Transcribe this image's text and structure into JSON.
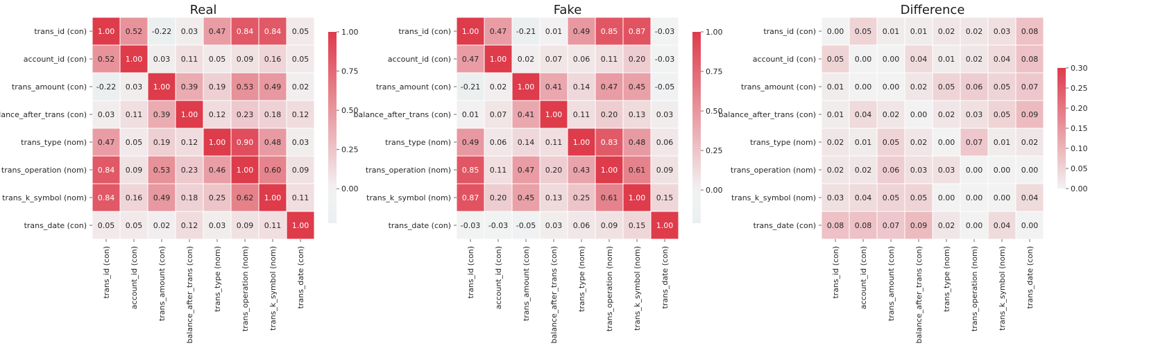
{
  "chart_data": [
    {
      "type": "heatmap",
      "title": "Real",
      "row_labels": [
        "trans_id (con)",
        "account_id (con)",
        "trans_amount (con)",
        "balance_after_trans (con)",
        "trans_type (nom)",
        "trans_operation (nom)",
        "trans_k_symbol (nom)",
        "trans_date (con)"
      ],
      "col_labels": [
        "trans_id (con)",
        "account_id (con)",
        "trans_amount (con)",
        "balance_after_trans (con)",
        "trans_type (nom)",
        "trans_operation (nom)",
        "trans_k_symbol (nom)",
        "trans_date (con)"
      ],
      "values": [
        [
          1.0,
          0.52,
          -0.22,
          0.03,
          0.47,
          0.84,
          0.84,
          0.05
        ],
        [
          0.52,
          1.0,
          0.03,
          0.11,
          0.05,
          0.09,
          0.16,
          0.05
        ],
        [
          -0.22,
          0.03,
          1.0,
          0.39,
          0.19,
          0.53,
          0.49,
          0.02
        ],
        [
          0.03,
          0.11,
          0.39,
          1.0,
          0.12,
          0.23,
          0.18,
          0.12
        ],
        [
          0.47,
          0.05,
          0.19,
          0.12,
          1.0,
          0.9,
          0.48,
          0.03
        ],
        [
          0.84,
          0.09,
          0.53,
          0.23,
          0.46,
          1.0,
          0.6,
          0.09
        ],
        [
          0.84,
          0.16,
          0.49,
          0.18,
          0.25,
          0.62,
          1.0,
          0.11
        ],
        [
          0.05,
          0.05,
          0.02,
          0.12,
          0.03,
          0.09,
          0.11,
          1.0
        ]
      ],
      "vmin": -0.22,
      "vmax": 1.0,
      "center": 0,
      "colorbar_ticks": [
        "1.00",
        "0.75",
        "0.50",
        "0.25",
        "0.00"
      ],
      "colorbar_tick_values": [
        1.0,
        0.75,
        0.5,
        0.25,
        0.0
      ]
    },
    {
      "type": "heatmap",
      "title": "Fake",
      "row_labels": [
        "trans_id (con)",
        "account_id (con)",
        "trans_amount (con)",
        "balance_after_trans (con)",
        "trans_type (nom)",
        "trans_operation (nom)",
        "trans_k_symbol (nom)",
        "trans_date (con)"
      ],
      "col_labels": [
        "trans_id (con)",
        "account_id (con)",
        "trans_amount (con)",
        "balance_after_trans (con)",
        "trans_type (nom)",
        "trans_operation (nom)",
        "trans_k_symbol (nom)",
        "trans_date (con)"
      ],
      "values": [
        [
          1.0,
          0.47,
          -0.21,
          0.01,
          0.49,
          0.85,
          0.87,
          -0.03
        ],
        [
          0.47,
          1.0,
          0.02,
          0.07,
          0.06,
          0.11,
          0.2,
          -0.03
        ],
        [
          -0.21,
          0.02,
          1.0,
          0.41,
          0.14,
          0.47,
          0.45,
          -0.05
        ],
        [
          0.01,
          0.07,
          0.41,
          1.0,
          0.11,
          0.2,
          0.13,
          0.03
        ],
        [
          0.49,
          0.06,
          0.14,
          0.11,
          1.0,
          0.83,
          0.48,
          0.06
        ],
        [
          0.85,
          0.11,
          0.47,
          0.2,
          0.43,
          1.0,
          0.61,
          0.09
        ],
        [
          0.87,
          0.2,
          0.45,
          0.13,
          0.25,
          0.61,
          1.0,
          0.15
        ],
        [
          -0.03,
          -0.03,
          -0.05,
          0.03,
          0.06,
          0.09,
          0.15,
          1.0
        ]
      ],
      "vmin": -0.21,
      "vmax": 1.0,
      "center": 0,
      "colorbar_ticks": [
        "1.00",
        "0.75",
        "0.50",
        "0.25",
        "0.00"
      ],
      "colorbar_tick_values": [
        1.0,
        0.75,
        0.5,
        0.25,
        0.0
      ]
    },
    {
      "type": "heatmap",
      "title": "Difference",
      "row_labels": [
        "trans_id (con)",
        "account_id (con)",
        "trans_amount (con)",
        "balance_after_trans (con)",
        "trans_type (nom)",
        "trans_operation (nom)",
        "trans_k_symbol (nom)",
        "trans_date (con)"
      ],
      "col_labels": [
        "trans_id (con)",
        "account_id (con)",
        "trans_amount (con)",
        "balance_after_trans (con)",
        "trans_type (nom)",
        "trans_operation (nom)",
        "trans_k_symbol (nom)",
        "trans_date (con)"
      ],
      "values": [
        [
          0.0,
          0.05,
          0.01,
          0.01,
          0.02,
          0.02,
          0.03,
          0.08
        ],
        [
          0.05,
          0.0,
          0.0,
          0.04,
          0.01,
          0.02,
          0.04,
          0.08
        ],
        [
          0.01,
          0.0,
          0.0,
          0.02,
          0.05,
          0.06,
          0.05,
          0.07
        ],
        [
          0.01,
          0.04,
          0.02,
          0.0,
          0.02,
          0.03,
          0.05,
          0.09
        ],
        [
          0.02,
          0.01,
          0.05,
          0.02,
          0.0,
          0.07,
          0.01,
          0.02
        ],
        [
          0.02,
          0.02,
          0.06,
          0.03,
          0.03,
          0.0,
          0.0,
          0.0
        ],
        [
          0.03,
          0.04,
          0.05,
          0.05,
          0.0,
          0.0,
          0.0,
          0.04
        ],
        [
          0.08,
          0.08,
          0.07,
          0.09,
          0.02,
          0.0,
          0.04,
          0.0
        ]
      ],
      "vmin": 0.0,
      "vmax": 0.3,
      "center": 0,
      "colorbar_ticks": [
        "0.30",
        "0.25",
        "0.20",
        "0.15",
        "0.10",
        "0.05",
        "0.00"
      ],
      "colorbar_tick_values": [
        0.3,
        0.25,
        0.2,
        0.15,
        0.1,
        0.05,
        0.0
      ]
    }
  ],
  "colors": {
    "negative": "#d3e3ea",
    "neutral": "#f2f2f2",
    "positive": "#de3b4b",
    "annotation_dark": "#262626",
    "annotation_light": "#ffffff",
    "title": "#1a1a1a",
    "tick_label": "#262626"
  }
}
